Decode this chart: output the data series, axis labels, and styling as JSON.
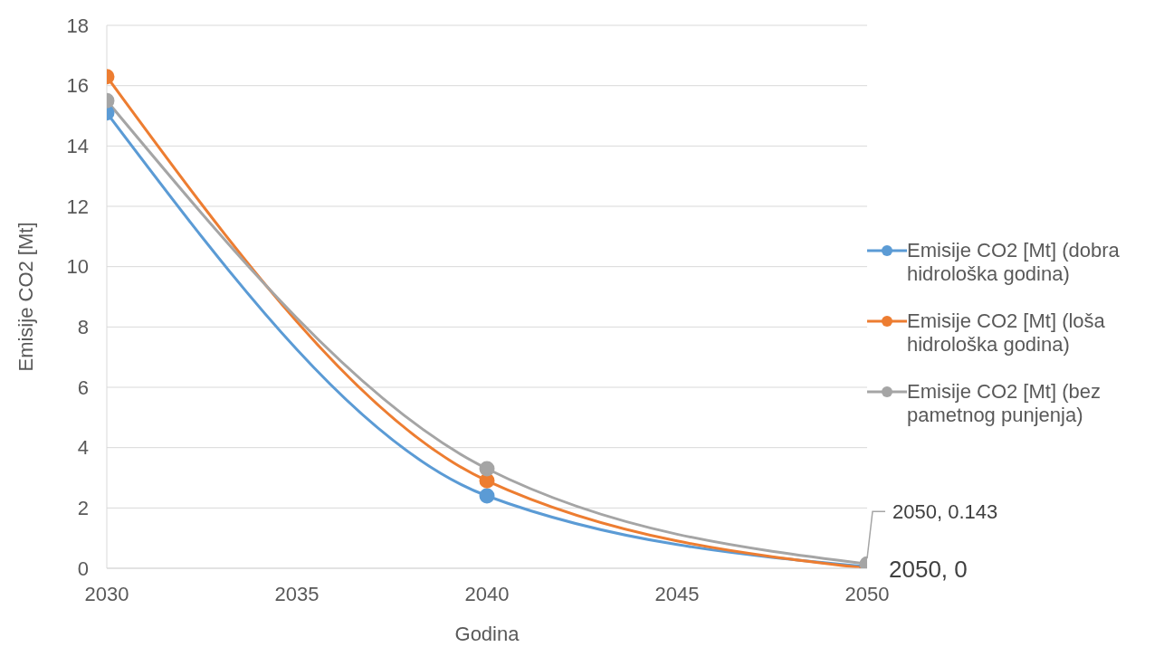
{
  "chart_data": {
    "type": "line",
    "xlabel": "Godina",
    "ylabel": "Emisije CO2 [Mt]",
    "x": [
      2030,
      2040,
      2050
    ],
    "series": [
      {
        "name": "Emisije CO2 [Mt] (dobra hidrološka godina)",
        "color": "#5b9bd5",
        "values": [
          15.1,
          2.4,
          0.05
        ]
      },
      {
        "name": "Emisije CO2 [Mt] (loša hidrološka godina)",
        "color": "#ed7d31",
        "values": [
          16.3,
          2.9,
          0
        ]
      },
      {
        "name": "Emisije CO2 [Mt] (bez pametnog punjenja)",
        "color": "#a5a5a5",
        "values": [
          15.5,
          3.3,
          0.143
        ]
      }
    ],
    "xlim": [
      2030,
      2050
    ],
    "xticks": [
      2030,
      2035,
      2040,
      2045,
      2050
    ],
    "ylim": [
      0,
      18
    ],
    "yticks": [
      0,
      2,
      4,
      6,
      8,
      10,
      12,
      14,
      16,
      18
    ],
    "grid": "y",
    "legend": "right",
    "marker": "circle",
    "line_style": "solid",
    "annotations": [
      {
        "text": "2050, 0.143",
        "x": 2050,
        "y": 0.143
      },
      {
        "text": "2050, 0",
        "x": 2050,
        "y": 0
      }
    ]
  }
}
